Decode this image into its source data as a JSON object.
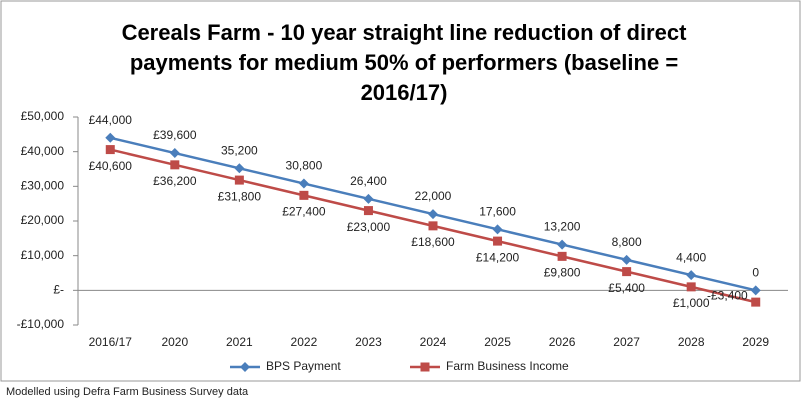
{
  "chart_data": {
    "type": "line",
    "title": "Cereals Farm - 10 year straight line reduction of direct payments for medium 50% of performers (baseline = 2016/17)",
    "categories": [
      "2016/17",
      "2020",
      "2021",
      "2022",
      "2023",
      "2024",
      "2025",
      "2026",
      "2027",
      "2028",
      "2029"
    ],
    "series": [
      {
        "name": "BPS Payment",
        "color": "#4a7ebb",
        "marker": "diamond",
        "values": [
          44000,
          39600,
          35200,
          30800,
          26400,
          22000,
          17600,
          13200,
          8800,
          4400,
          0
        ],
        "value_labels": [
          "£44,000",
          "£39,600",
          "35,200",
          "30,800",
          "26,400",
          "22,000",
          "17,600",
          "13,200",
          "8,800",
          "4,400",
          "0"
        ]
      },
      {
        "name": "Farm Business Income",
        "color": "#be4b48",
        "marker": "square",
        "values": [
          40600,
          36200,
          31800,
          27400,
          23000,
          18600,
          14200,
          9800,
          5400,
          1000,
          -3400
        ],
        "value_labels": [
          "£40,600",
          "£36,200",
          "£31,800",
          "£27,400",
          "£23,000",
          "£18,600",
          "£14,200",
          "£9,800",
          "£5,400",
          "£1,000",
          "-£3,400"
        ]
      }
    ],
    "ylim": [
      -10000,
      50000
    ],
    "yticks": [
      {
        "value": -10000,
        "label": "-£10,000"
      },
      {
        "value": 0,
        "label": "£-"
      },
      {
        "value": 10000,
        "label": "£10,000"
      },
      {
        "value": 20000,
        "label": "£20,000"
      },
      {
        "value": 30000,
        "label": "£30,000"
      },
      {
        "value": 40000,
        "label": "£40,000"
      },
      {
        "value": 50000,
        "label": "£50,000"
      }
    ],
    "grid": false,
    "legend": "bottom",
    "note": "Modelled using Defra Farm Business Survey data"
  }
}
